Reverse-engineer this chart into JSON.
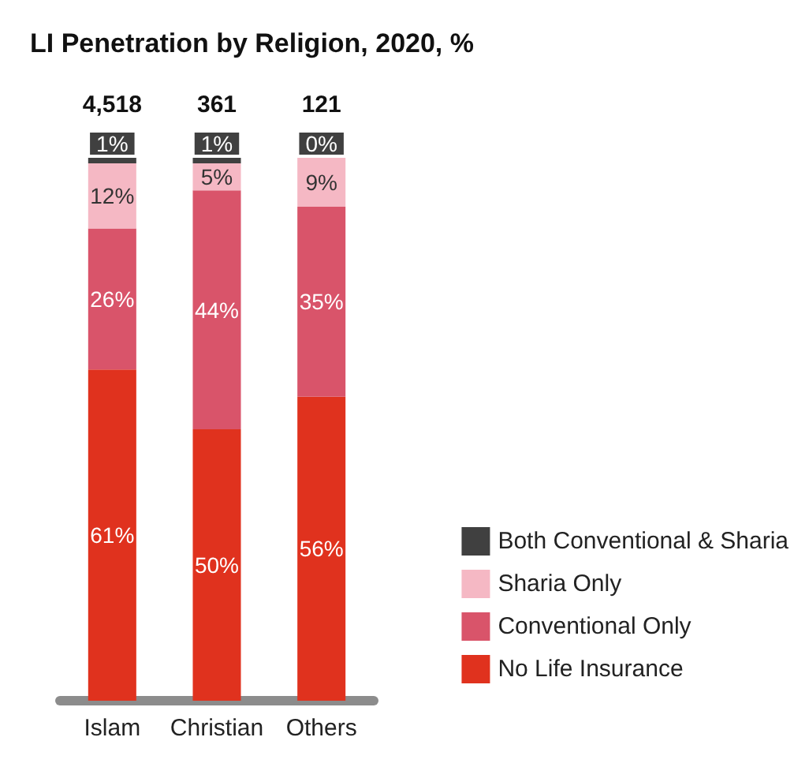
{
  "chart_data": {
    "type": "bar",
    "title": "LI Penetration by Religion, 2020, %",
    "categories": [
      "Islam",
      "Christian",
      "Others"
    ],
    "stacked": true,
    "legend": "bottom right",
    "annotations": [
      "4,518",
      "361",
      "121"
    ],
    "series": [
      {
        "name": "No Life Insurance",
        "color": "#e0321e",
        "values": [
          61,
          50,
          56
        ],
        "value_labels": [
          "61%",
          "50%",
          "56%"
        ]
      },
      {
        "name": "Conventional Only",
        "color": "#d9546a",
        "values": [
          26,
          44,
          35
        ],
        "value_labels": [
          "26%",
          "44%",
          "35%"
        ]
      },
      {
        "name": "Sharia Only",
        "color": "#f5b8c4",
        "values": [
          12,
          5,
          9
        ],
        "value_labels": [
          "12%",
          "5%",
          "9%"
        ]
      },
      {
        "name": "Both Conventional & Sharia",
        "color": "#404040",
        "values": [
          1,
          1,
          0
        ],
        "value_labels": [
          "1%",
          "1%",
          "0%"
        ]
      }
    ]
  }
}
